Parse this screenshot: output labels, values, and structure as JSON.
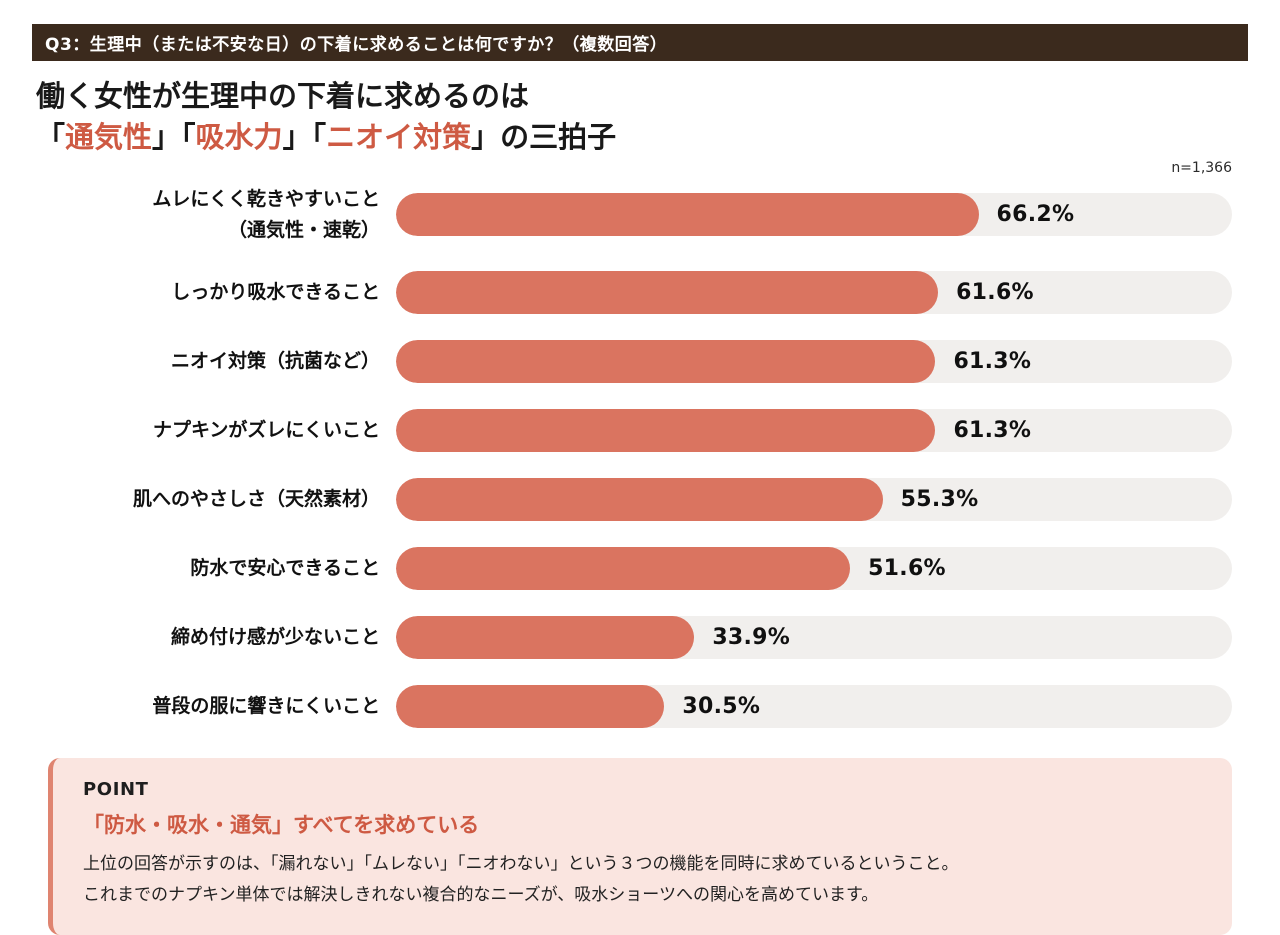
{
  "header": {
    "question": "Q3：生理中（または不安な日）の下着に求めることは何ですか？（複数回答）"
  },
  "title": {
    "line1": "働く女性が生理中の下着に求めるのは",
    "line2_parts": [
      {
        "text": "「"
      },
      {
        "text": "通気性"
      },
      {
        "text": "」「"
      },
      {
        "text": "吸水力"
      },
      {
        "text": "」「"
      },
      {
        "text": "ニオイ対策"
      },
      {
        "text": "」の三拍子"
      }
    ]
  },
  "sample_note": "n=1,366",
  "chart_data": {
    "type": "bar",
    "orientation": "horizontal",
    "title": "働く女性が生理中の下着に求めるのは「通気性」「吸水力」「ニオイ対策」の三拍子",
    "categories": [
      "ムレにくく乾きやすいこと\n（通気性・速乾）",
      "しっかり吸水できること",
      "ニオイ対策（抗菌など）",
      "ナプキンがズレにくいこと",
      "肌へのやさしさ（天然素材）",
      "防水で安心できること",
      "締め付け感が少ないこと",
      "普段の服に響きにくいこと"
    ],
    "values": [
      66.2,
      61.6,
      61.3,
      61.3,
      55.3,
      51.6,
      33.9,
      30.5
    ],
    "value_suffix": "%",
    "xlim": [
      0,
      95
    ],
    "grid": false,
    "legend": "none",
    "n": 1366
  },
  "point": {
    "label": "POINT",
    "heading": "「防水・吸水・通気」すべてを求めている",
    "body_lines": [
      "上位の回答が示すのは、「漏れない」「ムレない」「ニオわない」という３つの機能を同時に求めているということ。",
      "これまでのナプキン単体では解決しきれない複合的なニーズが、吸水ショーツへの関心を高めています。"
    ]
  },
  "colors": {
    "header_bg": "#3B2A1D",
    "bar": "#DA7460",
    "accent_text": "#CE5A43",
    "track": "#F1EFED",
    "point_bg": "#FAE5E0",
    "point_border": "#DF8470"
  }
}
